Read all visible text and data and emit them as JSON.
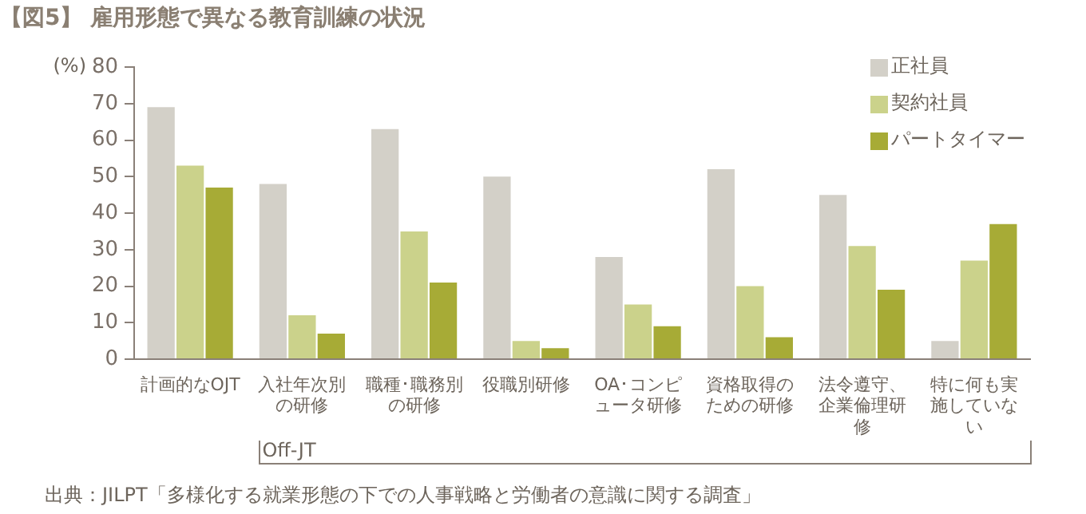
{
  "chart_data": {
    "type": "bar",
    "title": "【図5】 雇用形態で異なる教育訓練の状況",
    "ylabel": "(%)",
    "categories": [
      "計画的なOJT",
      "入社年次別の研修",
      "職種･職務別の研修",
      "役職別研修",
      "OA･コンピュータ研修",
      "資格取得のための研修",
      "法令遵守、企業倫理研修",
      "特に何も実施していない"
    ],
    "series": [
      {
        "name": "正社員",
        "color": "#d3d0c8",
        "values": [
          69,
          48,
          63,
          50,
          28,
          52,
          45,
          5
        ]
      },
      {
        "name": "契約社員",
        "color": "#cbd28b",
        "values": [
          53,
          12,
          35,
          5,
          15,
          20,
          31,
          27
        ]
      },
      {
        "name": "パートタイマー",
        "color": "#a7ab36",
        "values": [
          47,
          7,
          21,
          3,
          9,
          6,
          19,
          37
        ]
      }
    ],
    "ylim": [
      0,
      80
    ],
    "yticks": [
      0,
      10,
      20,
      30,
      40,
      50,
      60,
      70,
      80
    ],
    "grid": false,
    "legend": "top right",
    "annotations": [
      "Off-JT",
      "出典：JILPT「多様化する就業形態の下での人事戦略と労働者の意識に関する調査」"
    ]
  }
}
